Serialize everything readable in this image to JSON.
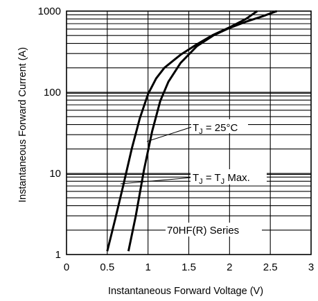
{
  "chart_data": {
    "type": "line",
    "title": "",
    "xlabel": "Instantaneous Forward Voltage (V)",
    "ylabel": "Instantaneous Forward Current (A)",
    "xlim": [
      0,
      3
    ],
    "ylim": [
      1,
      1000
    ],
    "yscale": "log",
    "grid": true,
    "x_ticks": [
      "0",
      "0.5",
      "1",
      "1.5",
      "2",
      "2.5",
      "3"
    ],
    "y_ticks": [
      "1",
      "10",
      "100",
      "1000"
    ],
    "series": [
      {
        "name": "TJ = 25°C",
        "points": [
          [
            0.5,
            1.1
          ],
          [
            0.6,
            2.8
          ],
          [
            0.7,
            7.4
          ],
          [
            0.8,
            20
          ],
          [
            0.9,
            48
          ],
          [
            1.0,
            95
          ],
          [
            1.1,
            148
          ],
          [
            1.2,
            200
          ],
          [
            1.4,
            290
          ],
          [
            1.6,
            390
          ],
          [
            1.8,
            510
          ],
          [
            2.0,
            630
          ],
          [
            2.2,
            800
          ],
          [
            2.34,
            1000
          ]
        ]
      },
      {
        "name": "TJ = TJ Max.",
        "points": [
          [
            0.76,
            1.1
          ],
          [
            0.85,
            3
          ],
          [
            0.95,
            11
          ],
          [
            1.05,
            33
          ],
          [
            1.15,
            78
          ],
          [
            1.25,
            135
          ],
          [
            1.4,
            230
          ],
          [
            1.6,
            370
          ],
          [
            1.8,
            500
          ],
          [
            2.0,
            620
          ],
          [
            2.2,
            740
          ],
          [
            2.4,
            860
          ],
          [
            2.58,
            1000
          ]
        ]
      }
    ],
    "annotations": [
      {
        "label": "TJ = 25°C",
        "text_main": "T",
        "text_sub": "J",
        "text_rest": " = 25°C"
      },
      {
        "label": "TJ = TJ Max.",
        "text_main": "T",
        "text_sub": "J",
        "text_mid": " = T",
        "text_sub2": "J",
        "text_rest": " Max."
      },
      {
        "label": "70HF(R) Series",
        "text": "70HF(R) Series"
      }
    ]
  }
}
